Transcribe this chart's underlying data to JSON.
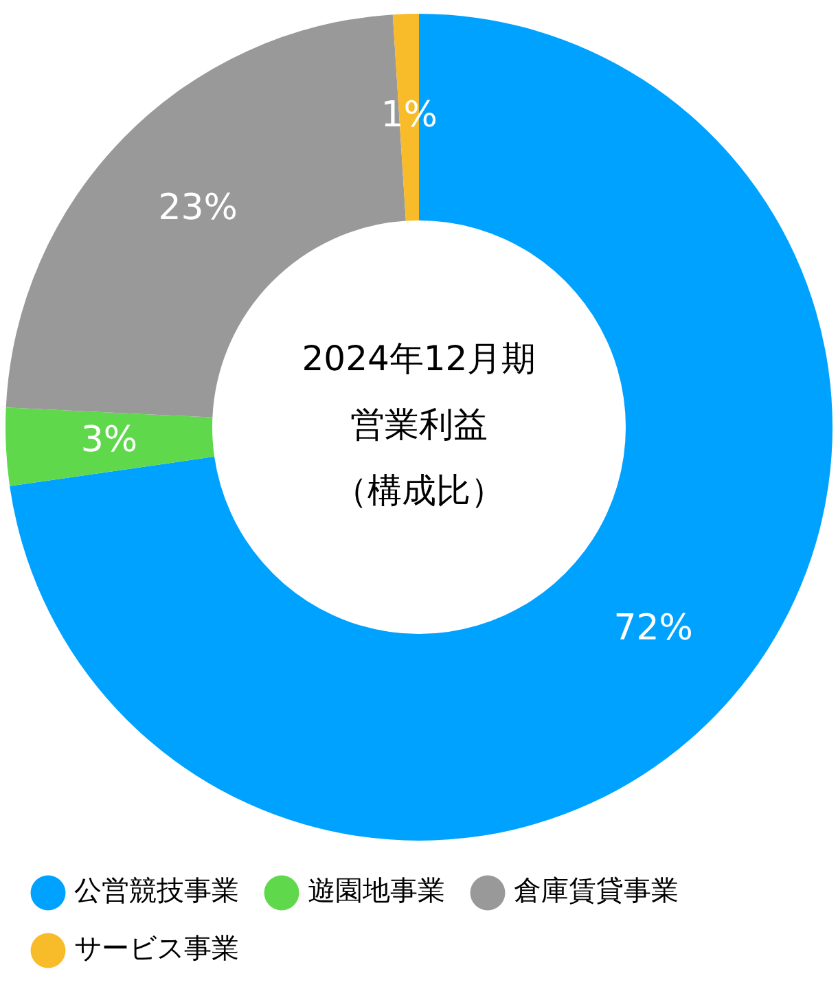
{
  "chart_data": {
    "type": "donut",
    "title": "2024年12月期",
    "subtitle": "営業利益",
    "annotations": [
      "（構成比）"
    ],
    "categories": [
      "公営競技事業",
      "遊園地事業",
      "倉庫賃貸事業",
      "サービス事業"
    ],
    "values": [
      72,
      3,
      23,
      1
    ],
    "value_labels": [
      "72%",
      "3%",
      "23%",
      "1%"
    ],
    "colors": [
      "#00a2ff",
      "#5fd94b",
      "#999999",
      "#f8bc2b"
    ],
    "legend": "bottom"
  }
}
